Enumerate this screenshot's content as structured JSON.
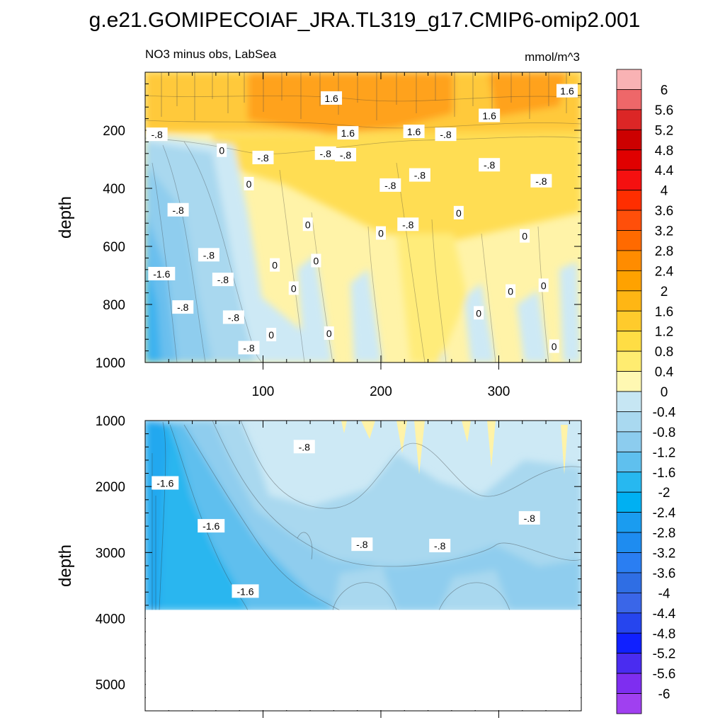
{
  "figure_title": "g.e21.GOMIPECOIAF_JRA.TL319_g17.CMIP6-omip2.001",
  "chart_data": {
    "type": "heatmap",
    "subtitle_left": "NO3 minus obs, LabSea",
    "subtitle_right": "mmol/m^3",
    "ylabel": "depth",
    "xlim": [
      0,
      370
    ],
    "x_ticks": [
      100,
      200,
      300
    ],
    "upper_panel": {
      "ylim": [
        1000,
        0
      ],
      "y_ticks": [
        200,
        400,
        600,
        800,
        1000
      ],
      "contour_labels": [
        {
          "text": "1.6",
          "x": 158,
          "y": 90
        },
        {
          "text": "1.6",
          "x": 172,
          "y": 210
        },
        {
          "text": "1.6",
          "x": 228,
          "y": 205
        },
        {
          "text": "1.6",
          "x": 292,
          "y": 150
        },
        {
          "text": "1.6",
          "x": 358,
          "y": 65
        },
        {
          "text": "-.8",
          "x": 10,
          "y": 215
        },
        {
          "text": "0",
          "x": 65,
          "y": 270
        },
        {
          "text": "-.8",
          "x": 100,
          "y": 295
        },
        {
          "text": "-.8",
          "x": 153,
          "y": 280
        },
        {
          "text": "-.8",
          "x": 170,
          "y": 285
        },
        {
          "text": "-.8",
          "x": 255,
          "y": 215
        },
        {
          "text": "-.8",
          "x": 292,
          "y": 320
        },
        {
          "text": "-.8",
          "x": 336,
          "y": 375
        },
        {
          "text": "0",
          "x": 88,
          "y": 385
        },
        {
          "text": "-.8",
          "x": 208,
          "y": 390
        },
        {
          "text": "-.8",
          "x": 233,
          "y": 355
        },
        {
          "text": "-.8",
          "x": 28,
          "y": 475
        },
        {
          "text": "0",
          "x": 138,
          "y": 525
        },
        {
          "text": "0",
          "x": 200,
          "y": 555
        },
        {
          "text": "-.8",
          "x": 223,
          "y": 525
        },
        {
          "text": "0",
          "x": 266,
          "y": 485
        },
        {
          "text": "0",
          "x": 322,
          "y": 565
        },
        {
          "text": "-.8",
          "x": 54,
          "y": 630
        },
        {
          "text": "-1.6",
          "x": 14,
          "y": 695
        },
        {
          "text": "0",
          "x": 110,
          "y": 665
        },
        {
          "text": "0",
          "x": 145,
          "y": 650
        },
        {
          "text": "-.8",
          "x": 66,
          "y": 715
        },
        {
          "text": "0",
          "x": 126,
          "y": 745
        },
        {
          "text": "0",
          "x": 310,
          "y": 755
        },
        {
          "text": "0",
          "x": 338,
          "y": 735
        },
        {
          "text": "-.8",
          "x": 32,
          "y": 810
        },
        {
          "text": "-.8",
          "x": 75,
          "y": 845
        },
        {
          "text": "0",
          "x": 283,
          "y": 830
        },
        {
          "text": "0",
          "x": 107,
          "y": 905
        },
        {
          "text": "0",
          "x": 156,
          "y": 900
        },
        {
          "text": "-.8",
          "x": 88,
          "y": 950
        },
        {
          "text": "0",
          "x": 347,
          "y": 945
        }
      ]
    },
    "lower_panel": {
      "ylim": [
        5400,
        1000
      ],
      "y_ticks": [
        1000,
        2000,
        3000,
        4000,
        5000
      ],
      "data_floor_depth": 3870,
      "contour_labels": [
        {
          "text": "-.8",
          "x": 135,
          "y": 1400
        },
        {
          "text": "-1.6",
          "x": 17,
          "y": 1950
        },
        {
          "text": "-1.6",
          "x": 56,
          "y": 2600
        },
        {
          "text": "-.8",
          "x": 184,
          "y": 2880
        },
        {
          "text": "-.8",
          "x": 250,
          "y": 2900
        },
        {
          "text": "-.8",
          "x": 326,
          "y": 2480
        },
        {
          "text": "-1.6",
          "x": 85,
          "y": 3590
        }
      ]
    },
    "colorbar": {
      "labels": [
        "6",
        "5.6",
        "5.2",
        "4.8",
        "4.4",
        "4",
        "3.6",
        "3.2",
        "2.8",
        "2.4",
        "2",
        "1.6",
        "1.2",
        "0.8",
        "0.4",
        "0",
        "-0.4",
        "-0.8",
        "-1.2",
        "-1.6",
        "-2",
        "-2.4",
        "-2.8",
        "-3.2",
        "-3.6",
        "-4",
        "-4.4",
        "-4.8",
        "-5.2",
        "-5.6",
        "-6"
      ],
      "colors": [
        "#f9b2b4",
        "#ee6769",
        "#dc2626",
        "#cc0000",
        "#e00000",
        "#f51010",
        "#ff2e00",
        "#ff4f0a",
        "#ff6a00",
        "#ff8c00",
        "#ffa200",
        "#ffb614",
        "#ffcb2c",
        "#ffdd44",
        "#ffec70",
        "#fff8b2",
        "#c6e6f3",
        "#a9d9f0",
        "#8cccee",
        "#5fc0ee",
        "#27b8f0",
        "#00b0f2",
        "#1a9cf0",
        "#1e8cf0",
        "#2a7ef2",
        "#2f6ee4",
        "#3a66e8",
        "#2645ee",
        "#1020ff",
        "#4a2cf0",
        "#7e2ef0",
        "#a040f0"
      ]
    }
  }
}
